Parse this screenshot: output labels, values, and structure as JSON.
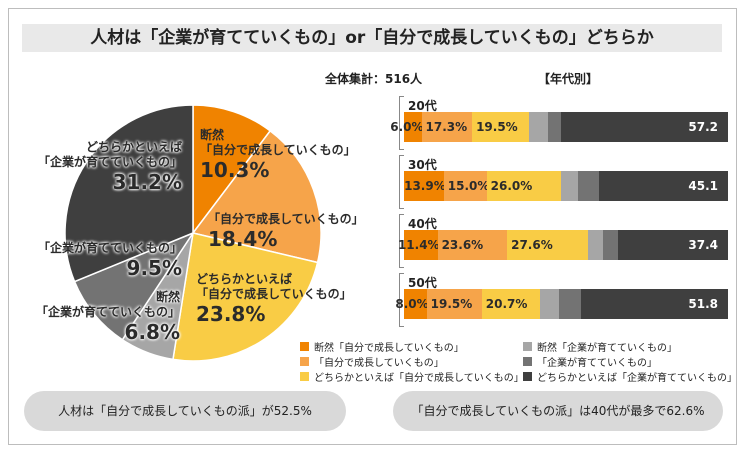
{
  "title": "人材は「企業が育てていくもの」or「自分で成長していくもの」どちらか",
  "total_label": "全体集計：516人",
  "by_age_label": "【年代別】",
  "colors": {
    "c1": "#f08300",
    "c2": "#f6a44a",
    "c3": "#f9cc45",
    "c4": "#a6a6a6",
    "c5": "#737373",
    "c6": "#3f3f3f"
  },
  "chart_data": [
    {
      "type": "pie",
      "categories": [
        "断然「自分で成長していくもの」",
        "「自分で成長していくもの」",
        "どちらかといえば「自分で成長していくもの」",
        "断然「企業が育てていくもの」",
        "「企業が育てていくもの」",
        "どちらかといえば「企業が育てていくもの」"
      ],
      "values": [
        10.3,
        18.4,
        23.8,
        6.8,
        9.5,
        31.2
      ],
      "value_labels": [
        "10.3%",
        "18.4%",
        "23.8%",
        "6.8%",
        "9.5%",
        "31.2%"
      ],
      "slice_text": [
        [
          "断然",
          "「自分で成長していくもの」"
        ],
        [
          "「自分で成長していくもの」"
        ],
        [
          "どちらかといえば",
          "「自分で成長していくもの」"
        ],
        [
          "断然",
          "「企業が育てていくもの」"
        ],
        [
          "「企業が育てていくもの」"
        ],
        [
          "どちらかといえば",
          "「企業が育てていくもの」"
        ]
      ]
    },
    {
      "type": "bar",
      "stacked": true,
      "orientation": "horizontal",
      "categories": [
        "20代",
        "30代",
        "40代",
        "50代"
      ],
      "series": [
        {
          "name": "断然「自分で成長していくもの」",
          "values": [
            6.0,
            13.9,
            11.4,
            8.0
          ],
          "labels": [
            "6.0%",
            "13.9%",
            "11.4%",
            "8.0%"
          ]
        },
        {
          "name": "「自分で成長していくもの」",
          "values": [
            17.3,
            15.0,
            23.6,
            19.5
          ],
          "labels": [
            "17.3%",
            "15.0%",
            "23.6%",
            "19.5%"
          ]
        },
        {
          "name": "どちらかといえば「自分で成長していくもの」",
          "values": [
            19.5,
            26.0,
            27.6,
            20.7
          ],
          "labels": [
            "19.5%",
            "26.0%",
            "27.6%",
            "20.7%"
          ]
        },
        {
          "name": "断然「企業が育てていくもの」",
          "values": [
            null,
            null,
            null,
            null
          ],
          "labels": [
            "",
            "",
            "",
            ""
          ]
        },
        {
          "name": "「企業が育てていくもの」",
          "values": [
            null,
            null,
            null,
            null
          ],
          "labels": [
            "",
            "",
            "",
            ""
          ]
        },
        {
          "name": "どちらかといえば「企業が育てていくもの」",
          "values": [
            57.2,
            45.1,
            37.4,
            51.8
          ],
          "labels": [
            "57.2",
            "45.1",
            "37.4",
            "51.8"
          ]
        }
      ],
      "unlabeled_bar_fractions": [
        [
          0.064,
          0.045
        ],
        [
          0.061,
          0.072
        ],
        [
          0.05,
          0.05
        ],
        [
          0.066,
          0.079
        ]
      ],
      "ylim": [
        0,
        100
      ],
      "legend": "bottom"
    }
  ],
  "legend_items": [
    "断然「自分で成長していくもの」",
    "「自分で成長していくもの」",
    "どちらかといえば「自分で成長していくもの」",
    "断然「企業が育てていくもの」",
    "「企業が育てていくもの」",
    "どちらかといえば「企業が育てていくもの」"
  ],
  "pills": {
    "left": "人材は「自分で成長していくもの派」が52.5%",
    "right": "「自分で成長していくもの派」は40代が最多で62.6%"
  }
}
